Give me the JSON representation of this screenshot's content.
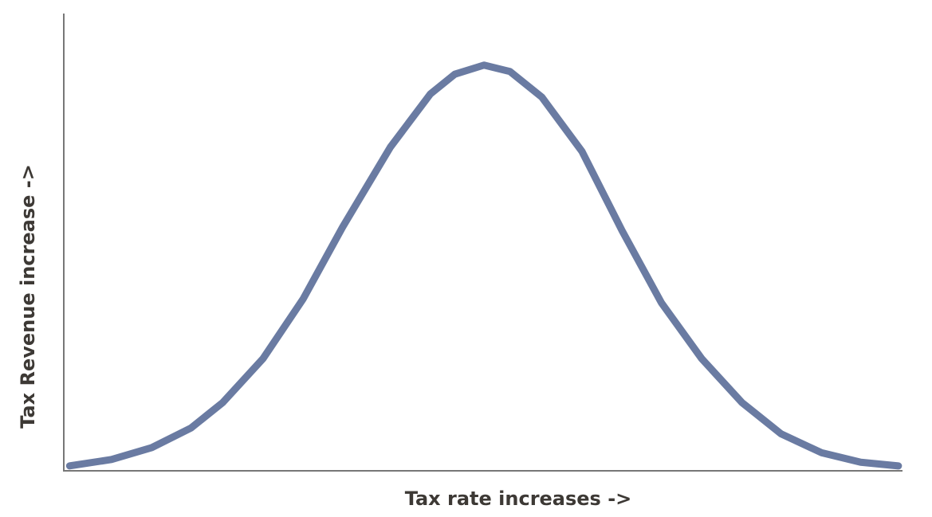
{
  "chart_data": {
    "type": "line",
    "x_label": "Tax rate increases ->",
    "y_label": "Tax Revenue increase ->",
    "xlim": [
      0,
      100
    ],
    "ylim": [
      0,
      100
    ],
    "series": [
      {
        "color": "#6a7ba2",
        "x": [
          0.7,
          5.7,
          10.5,
          15.2,
          19.0,
          23.8,
          28.6,
          33.3,
          39.0,
          43.8,
          46.7,
          50.2,
          53.3,
          57.1,
          61.9,
          66.7,
          71.4,
          76.2,
          81.0,
          85.7,
          90.5,
          95.2,
          99.7
        ],
        "values": [
          0.9,
          2.3,
          4.9,
          9.2,
          14.8,
          24.4,
          37.5,
          53.2,
          70.7,
          82.4,
          86.7,
          88.7,
          87.3,
          81.7,
          69.8,
          52.4,
          36.6,
          24.4,
          14.8,
          7.9,
          3.8,
          1.7,
          0.9
        ]
      }
    ]
  }
}
